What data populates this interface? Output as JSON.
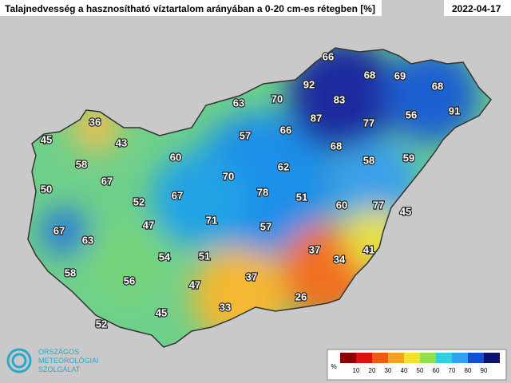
{
  "header": {
    "title": "Talajnedvesség a hasznosítható víztartalom arányában a 0-20 cm-es rétegben [%]",
    "date": "2022-04-17"
  },
  "stations": [
    66,
    68,
    69,
    68,
    92,
    83,
    70,
    63,
    91,
    87,
    77,
    56,
    66,
    36,
    57,
    45,
    43,
    68,
    60,
    58,
    59,
    58,
    62,
    67,
    70,
    50,
    67,
    78,
    51,
    52,
    60,
    77,
    45,
    71,
    47,
    57,
    67,
    63,
    37,
    41,
    54,
    51,
    34,
    58,
    37,
    56,
    47,
    33,
    26,
    45,
    52
  ],
  "legend": {
    "unit": "%",
    "ticks": [
      10,
      20,
      30,
      40,
      50,
      60,
      70,
      80,
      90
    ]
  },
  "logo": {
    "lines": [
      "ORSZÁGOS",
      "METEOROLÓGIAI",
      "SZOLGÁLAT"
    ]
  }
}
